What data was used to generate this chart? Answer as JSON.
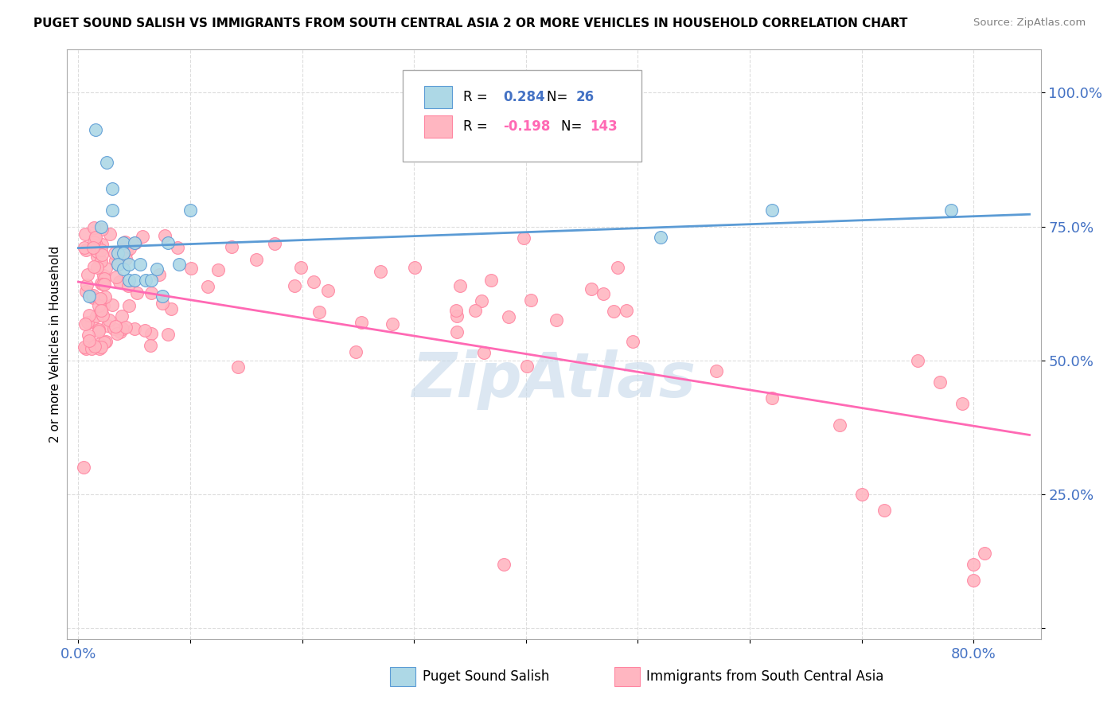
{
  "title": "PUGET SOUND SALISH VS IMMIGRANTS FROM SOUTH CENTRAL ASIA 2 OR MORE VEHICLES IN HOUSEHOLD CORRELATION CHART",
  "source": "Source: ZipAtlas.com",
  "ylabel": "2 or more Vehicles in Household",
  "legend_blue_r_val": "0.284",
  "legend_blue_n_val": "26",
  "legend_pink_r_val": "-0.198",
  "legend_pink_n_val": "143",
  "blue_color": "#ADD8E6",
  "blue_edge": "#5B9BD5",
  "blue_line_color": "#5B9BD5",
  "pink_color": "#FFB6C1",
  "pink_edge": "#FF85A1",
  "pink_line_color": "#FF69B4",
  "watermark": "ZipAtlas",
  "watermark_color": "#C5D8EA",
  "value_color": "#4472C4",
  "pink_value_color": "#FF69B4"
}
